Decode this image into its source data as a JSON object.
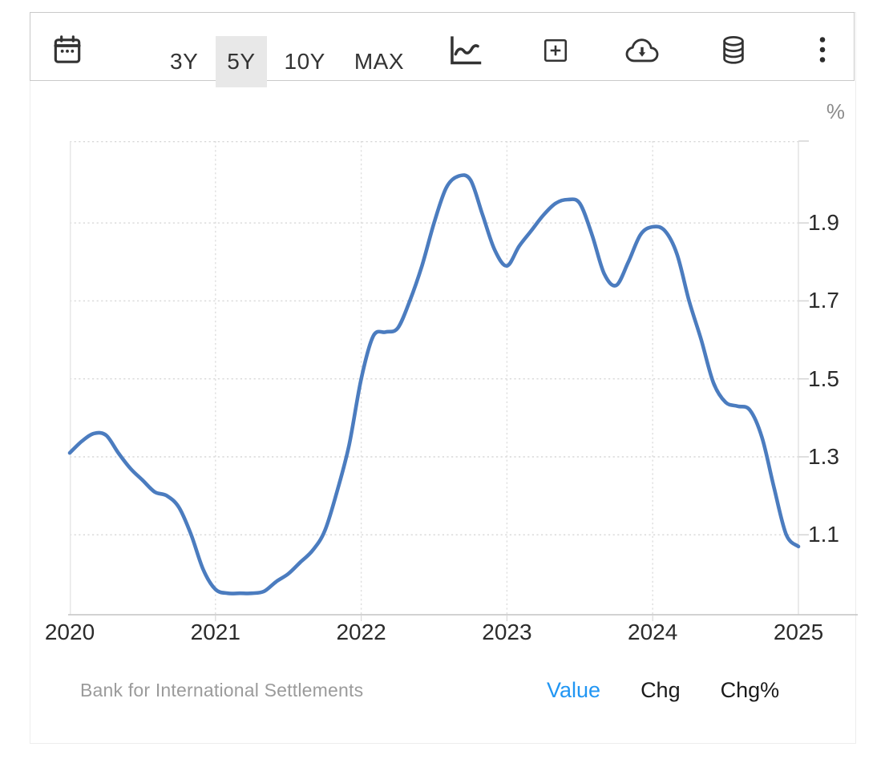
{
  "toolbar": {
    "ranges": [
      {
        "label": "3Y",
        "active": false
      },
      {
        "label": "5Y",
        "active": true
      },
      {
        "label": "10Y",
        "active": false
      },
      {
        "label": "MAX",
        "active": false
      }
    ],
    "icons": [
      "calendar-icon",
      "line-chart-icon",
      "compare-add-icon",
      "cloud-download-icon",
      "database-icon",
      "kebab-menu-icon"
    ],
    "active_bg_color": "#e8e8e8"
  },
  "chart_data": {
    "type": "line",
    "title": "",
    "unit": "%",
    "xlim": [
      2020,
      2025
    ],
    "ylim": [
      0.895,
      2.11
    ],
    "x_tick_labels": [
      "2020",
      "2021",
      "2022",
      "2023",
      "2024",
      "2025"
    ],
    "x_ticks": [
      2020,
      2021,
      2022,
      2023,
      2024,
      2025
    ],
    "y_tick_labels": [
      "1.9",
      "1.7",
      "1.5",
      "1.3",
      "1.1"
    ],
    "y_ticks": [
      1.9,
      1.7,
      1.5,
      1.3,
      1.1
    ],
    "grid": "dotted",
    "legend": "none",
    "line_color": "#4b7cbf",
    "x_start": 2020,
    "x_step_per_point": 0.0833333,
    "x_description": "monthly points, Jan 2020 through Jan 2025",
    "values": [
      1.31,
      1.34,
      1.36,
      1.355,
      1.31,
      1.27,
      1.24,
      1.21,
      1.2,
      1.17,
      1.1,
      1.01,
      0.96,
      0.95,
      0.95,
      0.95,
      0.955,
      0.98,
      1.0,
      1.03,
      1.06,
      1.11,
      1.21,
      1.33,
      1.5,
      1.61,
      1.62,
      1.63,
      1.7,
      1.79,
      1.9,
      1.99,
      2.02,
      2.01,
      1.92,
      1.83,
      1.79,
      1.84,
      1.88,
      1.92,
      1.95,
      1.96,
      1.95,
      1.87,
      1.77,
      1.74,
      1.8,
      1.87,
      1.89,
      1.88,
      1.82,
      1.7,
      1.6,
      1.49,
      1.44,
      1.43,
      1.42,
      1.35,
      1.22,
      1.1,
      1.07
    ]
  },
  "footer": {
    "source": "Bank for International Settlements",
    "modes": [
      {
        "label": "Value",
        "active": true
      },
      {
        "label": "Chg",
        "active": false
      },
      {
        "label": "Chg%",
        "active": false
      }
    ],
    "active_color": "#2196f3"
  }
}
